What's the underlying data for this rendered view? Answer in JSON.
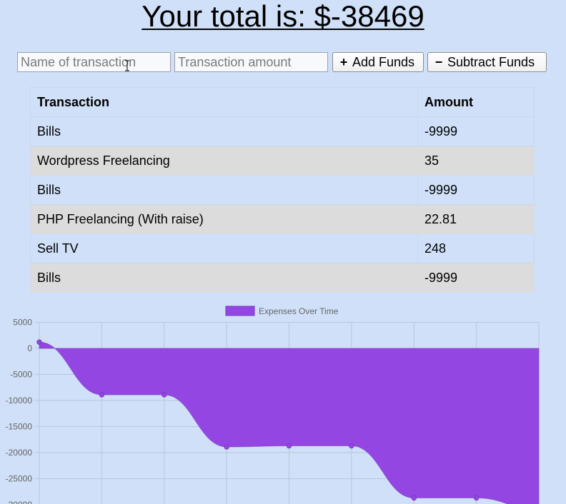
{
  "header": {
    "total_label": "Your total is: $-38469"
  },
  "form": {
    "name_placeholder": "Name of transaction",
    "amount_placeholder": "Transaction amount",
    "add_label": "Add Funds",
    "subtract_label": "Subtract Funds"
  },
  "table": {
    "headers": [
      "Transaction",
      "Amount"
    ],
    "rows": [
      {
        "name": "Bills",
        "amount": "-9999"
      },
      {
        "name": "Wordpress Freelancing",
        "amount": "35"
      },
      {
        "name": "Bills",
        "amount": "-9999"
      },
      {
        "name": "PHP Freelancing (With raise)",
        "amount": "22.81"
      },
      {
        "name": "Sell TV",
        "amount": "248"
      },
      {
        "name": "Bills",
        "amount": "-9999"
      }
    ]
  },
  "colors": {
    "background": "#d0e0f8",
    "series_fill": "#9446e2",
    "grid": "#b8c6dc"
  },
  "chart_data": {
    "type": "area",
    "title": "",
    "xlabel": "",
    "ylabel": "",
    "series": [
      {
        "name": "Expenses Over Time",
        "values": [
          1200,
          -8900,
          -8900,
          -18900,
          -18700,
          -18700,
          -28700,
          -28700,
          -31000
        ]
      }
    ],
    "ylim": [
      -30000,
      5000
    ],
    "yticks": [
      5000,
      0,
      -5000,
      -10000,
      -15000,
      -20000,
      -25000
    ],
    "ytick_labels": [
      "5000",
      "0",
      "-5000",
      "-10000",
      "-15000",
      "-20000",
      "-25000"
    ],
    "legend": "top-center",
    "grid": true
  }
}
